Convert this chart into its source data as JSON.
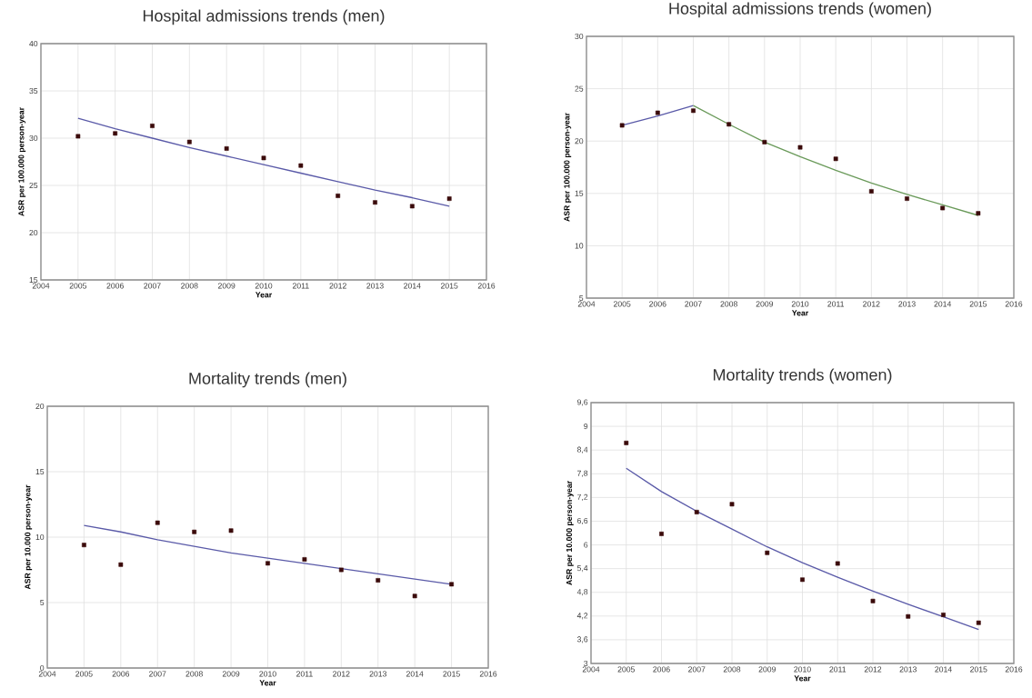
{
  "chart_data": [
    {
      "type": "scatter",
      "title": "Hospital admissions trends (men)",
      "xlabel": "Year",
      "ylabel": "ASR per 100.000 person-year",
      "x": [
        2005,
        2006,
        2007,
        2008,
        2009,
        2010,
        2011,
        2012,
        2013,
        2014,
        2015
      ],
      "xlim": [
        2004,
        2016
      ],
      "xticks": [
        2004,
        2005,
        2006,
        2007,
        2008,
        2009,
        2010,
        2011,
        2012,
        2013,
        2014,
        2015,
        2016
      ],
      "ylim": [
        15,
        40
      ],
      "yticks": [
        15,
        20,
        25,
        30,
        35,
        40
      ],
      "grid": true,
      "series": [
        {
          "marker": "square",
          "color": "#3a0a0a",
          "values": [
            30.2,
            30.5,
            31.3,
            29.6,
            28.9,
            27.9,
            27.1,
            23.9,
            23.2,
            22.8,
            23.6
          ]
        },
        {
          "type": "line",
          "marker": "none",
          "color": "#5a5aa8",
          "values": [
            32.1,
            31.0,
            30.0,
            29.0,
            28.1,
            27.2,
            26.3,
            25.4,
            24.5,
            23.7,
            22.8
          ]
        }
      ]
    },
    {
      "type": "scatter",
      "title": "Hospital admissions trends (women)",
      "xlabel": "Year",
      "ylabel": "ASR per 100.000 person-year",
      "x": [
        2005,
        2006,
        2007,
        2008,
        2009,
        2010,
        2011,
        2012,
        2013,
        2014,
        2015
      ],
      "xlim": [
        2004,
        2016
      ],
      "xticks": [
        2004,
        2005,
        2006,
        2007,
        2008,
        2009,
        2010,
        2011,
        2012,
        2013,
        2014,
        2015,
        2016
      ],
      "ylim": [
        5,
        30
      ],
      "yticks": [
        5,
        10,
        15,
        20,
        25,
        30
      ],
      "grid": true,
      "series": [
        {
          "marker": "square",
          "color": "#3a0a0a",
          "values": [
            21.5,
            22.7,
            22.9,
            21.6,
            19.9,
            19.4,
            18.3,
            15.2,
            14.5,
            13.6,
            13.1
          ]
        },
        {
          "type": "line",
          "marker": "none",
          "color": "#5a5aa8",
          "x": [
            2005,
            2006,
            2007
          ],
          "values": [
            21.5,
            22.4,
            23.4
          ]
        },
        {
          "type": "line",
          "marker": "none",
          "color": "#6a9a5a",
          "x": [
            2007,
            2008,
            2009,
            2010,
            2011,
            2012,
            2013,
            2014,
            2015
          ],
          "values": [
            23.4,
            21.6,
            19.9,
            18.5,
            17.2,
            16.0,
            14.9,
            13.9,
            12.9
          ]
        }
      ]
    },
    {
      "type": "scatter",
      "title": "Mortality trends (men)",
      "xlabel": "Year",
      "ylabel": "ASR per 10.000 person-year",
      "x": [
        2005,
        2006,
        2007,
        2008,
        2009,
        2010,
        2011,
        2012,
        2013,
        2014,
        2015
      ],
      "xlim": [
        2004,
        2016
      ],
      "xticks": [
        2004,
        2005,
        2006,
        2007,
        2008,
        2009,
        2010,
        2011,
        2012,
        2013,
        2014,
        2015,
        2016
      ],
      "ylim": [
        0,
        20
      ],
      "yticks": [
        0,
        5,
        10,
        15,
        20
      ],
      "grid": true,
      "series": [
        {
          "marker": "square",
          "color": "#3a0a0a",
          "values": [
            9.4,
            7.9,
            11.1,
            10.4,
            10.5,
            8.0,
            8.3,
            7.5,
            6.7,
            5.5,
            6.4
          ]
        },
        {
          "type": "line",
          "marker": "none",
          "color": "#5a5aa8",
          "values": [
            10.9,
            10.4,
            9.8,
            9.3,
            8.8,
            8.4,
            8.0,
            7.6,
            7.2,
            6.8,
            6.4
          ]
        }
      ]
    },
    {
      "type": "scatter",
      "title": "Mortality trends (women)",
      "xlabel": "Year",
      "ylabel": "ASR per 10.000 person-year",
      "x": [
        2005,
        2006,
        2007,
        2008,
        2009,
        2010,
        2011,
        2012,
        2013,
        2014,
        2015
      ],
      "xlim": [
        2004,
        2016
      ],
      "xticks": [
        2004,
        2005,
        2006,
        2007,
        2008,
        2009,
        2010,
        2011,
        2012,
        2013,
        2014,
        2015,
        2016
      ],
      "ylim": [
        3,
        9.6
      ],
      "yticks": [
        3,
        {
          "value": 3.6,
          "label": "3,6"
        },
        {
          "value": 4.2,
          "label": "4,2"
        },
        {
          "value": 4.8,
          "label": "4,8"
        },
        {
          "value": 5.4,
          "label": "5,4"
        },
        6,
        {
          "value": 6.6,
          "label": "6,6"
        },
        {
          "value": 7.2,
          "label": "7,2"
        },
        {
          "value": 7.8,
          "label": "7,8"
        },
        {
          "value": 8.4,
          "label": "8,4"
        },
        9,
        {
          "value": 9.6,
          "label": "9,6"
        }
      ],
      "grid": true,
      "series": [
        {
          "marker": "square",
          "color": "#3a0a0a",
          "values": [
            8.58,
            6.28,
            6.83,
            7.03,
            5.8,
            5.12,
            5.53,
            4.58,
            4.19,
            4.23,
            4.03
          ]
        },
        {
          "type": "line",
          "marker": "none",
          "color": "#5a5aa8",
          "values": [
            7.94,
            7.35,
            6.85,
            6.4,
            5.95,
            5.55,
            5.18,
            4.83,
            4.5,
            4.18,
            3.86
          ]
        }
      ]
    }
  ]
}
